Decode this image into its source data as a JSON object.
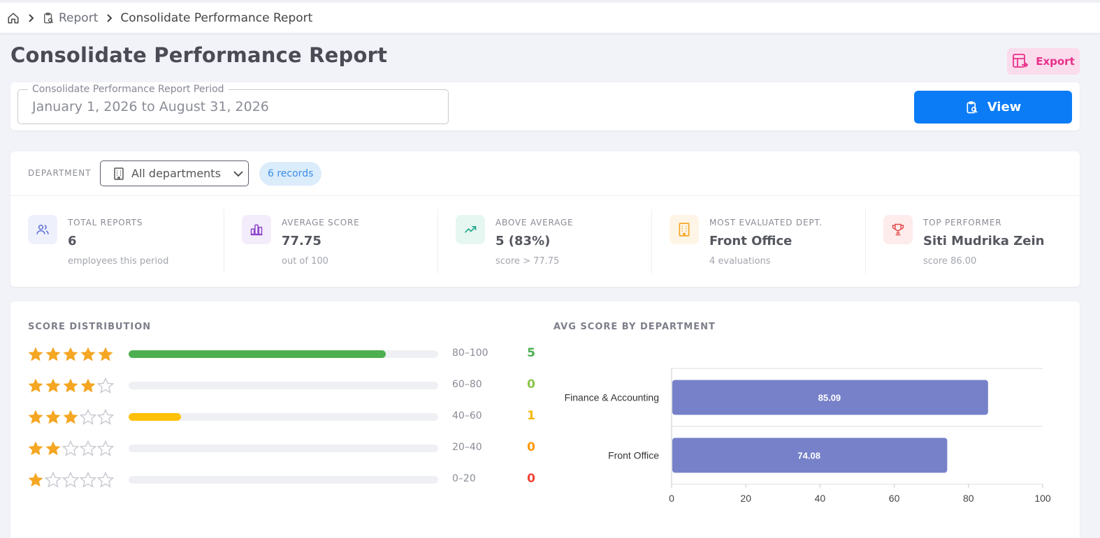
{
  "breadcrumb": {
    "items": [
      {
        "label": "Report",
        "icon": "clipboard-report-icon"
      },
      {
        "label": "Consolidate Performance Report"
      }
    ],
    "home_icon": "home-icon"
  },
  "page": {
    "title": "Consolidate Performance Report",
    "export_label": "Export",
    "export_icon": "table-export-icon"
  },
  "period": {
    "legend": "Consolidate Performance Report Period",
    "value": "January 1, 2026 to August 31, 2026",
    "view_label": "View"
  },
  "filter": {
    "label": "DEPARTMENT",
    "selected": "All departments",
    "records": "6 records"
  },
  "stats": [
    {
      "label": "TOTAL REPORTS",
      "value": "6",
      "sub": "employees this period",
      "icon": "users-icon",
      "color": "#5b6fd6",
      "bg": "#eef0fb"
    },
    {
      "label": "AVERAGE SCORE",
      "value": "77.75",
      "sub": "out of 100",
      "icon": "bar-chart-icon",
      "color": "#8e44c9",
      "bg": "#f3ecfa"
    },
    {
      "label": "ABOVE AVERAGE",
      "value": "5 (83%)",
      "sub": "score > 77.75",
      "icon": "trending-up-icon",
      "color": "#1fa88a",
      "bg": "#e6f6f1"
    },
    {
      "label": "MOST EVALUATED DEPT.",
      "value": "Front Office",
      "sub": "4 evaluations",
      "icon": "building-icon",
      "color": "#f5a623",
      "bg": "#fff5e6"
    },
    {
      "label": "TOP PERFORMER",
      "value": "Siti Mudrika Zein",
      "sub": "score 86.00",
      "icon": "trophy-icon",
      "color": "#e54b4b",
      "bg": "#fdeceb"
    }
  ],
  "distribution": {
    "title": "SCORE DISTRIBUTION",
    "rows": [
      {
        "stars": 5,
        "range": "80–100",
        "count": "5",
        "fraction": 0.83,
        "fill": "#4caf50",
        "count_color": "#4caf50"
      },
      {
        "stars": 4,
        "range": "60–80",
        "count": "0",
        "fraction": 0,
        "fill": "#8bc34a",
        "count_color": "#8bc34a"
      },
      {
        "stars": 3,
        "range": "40–60",
        "count": "1",
        "fraction": 0.17,
        "fill": "#ffc107",
        "count_color": "#f5b800"
      },
      {
        "stars": 2,
        "range": "20–40",
        "count": "0",
        "fraction": 0,
        "fill": "#ff9800",
        "count_color": "#ff9800"
      },
      {
        "stars": 1,
        "range": "0–20",
        "count": "0",
        "fraction": 0,
        "fill": "#f44336",
        "count_color": "#f44336"
      }
    ],
    "star_color": "#f5a623",
    "star_empty_color": "#c8cad0"
  },
  "chart_data": {
    "type": "bar",
    "orientation": "horizontal",
    "title": "AVG SCORE BY DEPARTMENT",
    "categories": [
      "Finance & Accounting",
      "Front Office"
    ],
    "values": [
      85.09,
      74.08
    ],
    "value_labels": [
      "85.09",
      "74.08"
    ],
    "xlim": [
      0,
      100
    ],
    "xticks": [
      "0",
      "20",
      "40",
      "60",
      "80",
      "100"
    ],
    "bar_color": "#7681c9",
    "grid": true
  }
}
